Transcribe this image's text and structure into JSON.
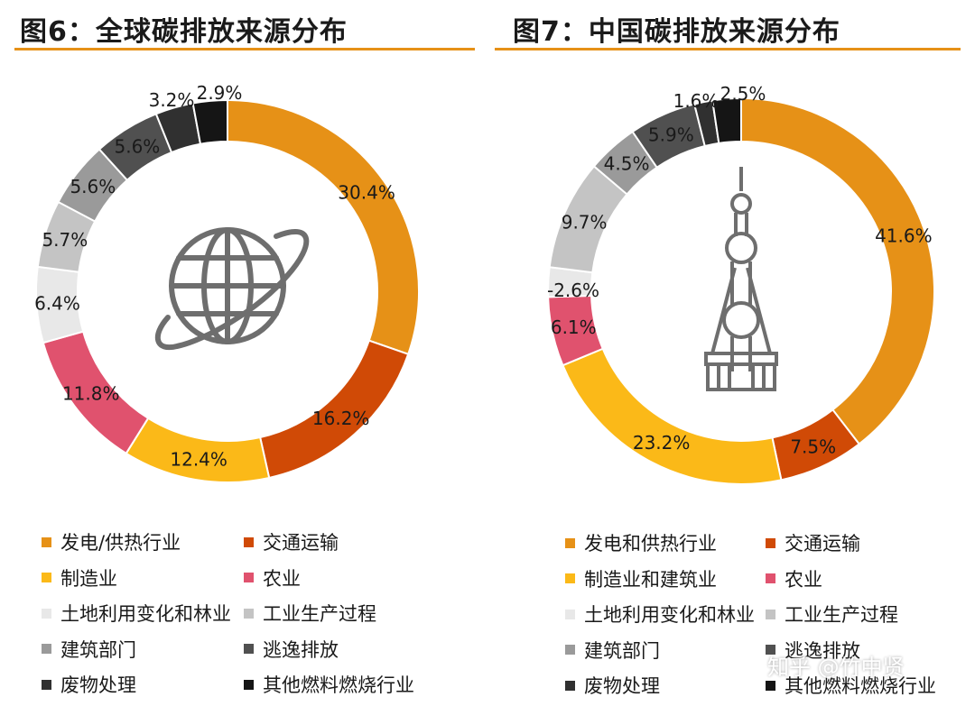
{
  "watermark": "知乎 @竹中贤",
  "chart_data": [
    {
      "type": "pie",
      "variant": "donut",
      "title": "图6：全球碳排放来源分布",
      "icon": "globe-icon",
      "slices": [
        {
          "label": "发电/供热行业",
          "value": 30.4,
          "value_label": "30.4%",
          "color": "#e69117"
        },
        {
          "label": "交通运输",
          "value": 16.2,
          "value_label": "16.2%",
          "color": "#d04a06"
        },
        {
          "label": "制造业",
          "value": 12.4,
          "value_label": "12.4%",
          "color": "#fbb918"
        },
        {
          "label": "农业",
          "value": 11.8,
          "value_label": "11.8%",
          "color": "#e0526e"
        },
        {
          "label": "土地利用变化和林业",
          "value": 6.4,
          "value_label": "6.4%",
          "color": "#e8e8e8"
        },
        {
          "label": "工业生产过程",
          "value": 5.7,
          "value_label": "5.7%",
          "color": "#c4c4c4"
        },
        {
          "label": "建筑部门",
          "value": 5.6,
          "value_label": "5.6%",
          "color": "#9a9a9a"
        },
        {
          "label": "逃逸排放",
          "value": 5.6,
          "value_label": "5.6%",
          "color": "#505050"
        },
        {
          "label": "废物处理",
          "value": 3.2,
          "value_label": "3.2%",
          "color": "#303030"
        },
        {
          "label": "其他燃料燃烧行业",
          "value": 2.9,
          "value_label": "2.9%",
          "color": "#151515"
        }
      ]
    },
    {
      "type": "pie",
      "variant": "donut",
      "title": "图7：中国碳排放来源分布",
      "icon": "tv-tower-icon",
      "slices": [
        {
          "label": "发电和供热行业",
          "value": 41.6,
          "value_label": "41.6%",
          "color": "#e69117"
        },
        {
          "label": "交通运输",
          "value": 7.5,
          "value_label": "7.5%",
          "color": "#d04a06"
        },
        {
          "label": "制造业和建筑业",
          "value": 23.2,
          "value_label": "23.2%",
          "color": "#fbb918"
        },
        {
          "label": "农业",
          "value": 6.1,
          "value_label": "6.1%",
          "color": "#e0526e"
        },
        {
          "label": "土地利用变化和林业",
          "value": -2.6,
          "value_label": "-2.6%",
          "color": "#e8e8e8"
        },
        {
          "label": "工业生产过程",
          "value": 9.7,
          "value_label": "9.7%",
          "color": "#c4c4c4"
        },
        {
          "label": "建筑部门",
          "value": 4.5,
          "value_label": "4.5%",
          "color": "#9a9a9a"
        },
        {
          "label": "逃逸排放",
          "value": 5.9,
          "value_label": "5.9%",
          "color": "#505050"
        },
        {
          "label": "废物处理",
          "value": 1.6,
          "value_label": "1.6%",
          "color": "#303030"
        },
        {
          "label": "其他燃料燃烧行业",
          "value": 2.5,
          "value_label": "2.5%",
          "color": "#151515"
        }
      ]
    }
  ]
}
